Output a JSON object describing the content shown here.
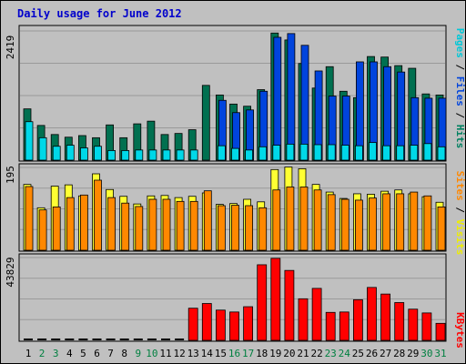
{
  "chart_data": {
    "type": "bar",
    "title": "Daily usage for June 2012",
    "days": [
      "1",
      "2",
      "3",
      "4",
      "5",
      "6",
      "7",
      "8",
      "9",
      "10",
      "11",
      "12",
      "13",
      "14",
      "15",
      "16",
      "17",
      "18",
      "19",
      "20",
      "21",
      "22",
      "23",
      "24",
      "25",
      "26",
      "27",
      "28",
      "29",
      "30",
      "31"
    ],
    "weekend_days": [
      "2",
      "3",
      "9",
      "10",
      "16",
      "17",
      "23",
      "24",
      "30",
      "31"
    ],
    "panels": [
      {
        "id": "hits",
        "ymax_label": "2419",
        "ymax": 2419,
        "legend": [
          {
            "text": "Pages",
            "color": "#00c8d8"
          },
          {
            "text": " / ",
            "color": "#000000"
          },
          {
            "text": "Files",
            "color": "#0044dd"
          },
          {
            "text": " / ",
            "color": "#000000"
          },
          {
            "text": "Hits",
            "color": "#008060"
          }
        ],
        "series": [
          {
            "key": "hits",
            "color": "#007050",
            "values": [
              960,
              650,
              480,
              430,
              460,
              420,
              660,
              420,
              680,
              730,
              480,
              500,
              570,
              1400,
              1220,
              1050,
              1010,
              1320,
              2380,
              2250,
              1810,
              1350,
              1750,
              1290,
              1170,
              1940,
              1930,
              1770,
              1720,
              1240,
              1220
            ]
          },
          {
            "key": "files",
            "color": "#0044dd",
            "values": [
              0,
              0,
              0,
              0,
              0,
              0,
              0,
              0,
              0,
              0,
              0,
              0,
              0,
              0,
              1120,
              890,
              940,
              1290,
              2300,
              2370,
              2150,
              1670,
              1200,
              1200,
              1840,
              1840,
              1750,
              1650,
              1170,
              1160,
              1160
            ]
          },
          {
            "key": "pages",
            "color": "#00d8e8",
            "values": [
              720,
              420,
              260,
              280,
              230,
              260,
              180,
              180,
              190,
              190,
              190,
              190,
              190,
              0,
              270,
              220,
              190,
              250,
              280,
              300,
              300,
              290,
              290,
              280,
              270,
              330,
              270,
              270,
              280,
              310,
              250
            ]
          }
        ]
      },
      {
        "id": "visits",
        "ymax_label": "195",
        "ymax": 195,
        "legend": [
          {
            "text": "Sites",
            "color": "#ff8800"
          },
          {
            "text": " / ",
            "color": "#000000"
          },
          {
            "text": "Visits",
            "color": "#eeee00"
          }
        ],
        "series": [
          {
            "key": "visits",
            "color": "#ffff33",
            "values": [
              155,
              100,
              151,
              154,
              128,
              180,
              143,
              127,
              109,
              128,
              129,
              124,
              127,
              135,
              108,
              110,
              120,
              114,
              190,
              196,
              192,
              155,
              137,
              122,
              133,
              132,
              139,
              142,
              133,
              126,
              113
            ]
          },
          {
            "key": "sites",
            "color": "#ff8800",
            "values": [
              150,
              95,
              102,
              124,
              130,
              165,
              124,
              111,
              103,
              120,
              120,
              115,
              115,
              140,
              105,
              106,
              105,
              100,
              142,
              149,
              149,
              142,
              131,
              120,
              118,
              123,
              133,
              133,
              137,
              128,
              102
            ]
          }
        ]
      },
      {
        "id": "kbytes",
        "ymax_label": "43829",
        "ymax": 43829,
        "legend": [
          {
            "text": "KBytes",
            "color": "#ff0000"
          }
        ],
        "series": [
          {
            "key": "kbytes",
            "color": "#ff0000",
            "values": [
              0,
              0,
              0,
              0,
              0,
              0,
              0,
              0,
              0,
              0,
              0,
              0,
              17000,
              19500,
              16000,
              15000,
              17800,
              40000,
              43400,
              37000,
              22000,
              27500,
              14800,
              15000,
              21500,
              28000,
              24500,
              20000,
              16500,
              14500,
              9000
            ]
          }
        ]
      }
    ]
  }
}
